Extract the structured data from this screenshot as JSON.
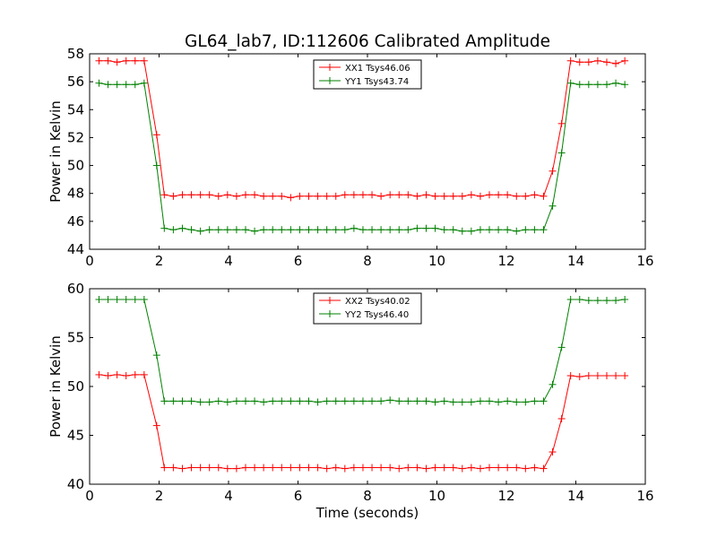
{
  "title": "GL64_lab7, ID:112606 Calibrated Amplitude",
  "chart_data": [
    {
      "type": "line",
      "xlabel": "",
      "ylabel": "Power in Kelvin",
      "xlim": [
        0,
        16
      ],
      "ylim": [
        44,
        58
      ],
      "xticks": [
        0,
        2,
        4,
        6,
        8,
        10,
        12,
        14,
        16
      ],
      "yticks": [
        44,
        46,
        48,
        50,
        52,
        54,
        56,
        58
      ],
      "grid": false,
      "legend": "top-center",
      "x": [
        0.27,
        0.53,
        0.79,
        1.05,
        1.31,
        1.57,
        1.93,
        2.15,
        2.41,
        2.67,
        2.93,
        3.19,
        3.45,
        3.71,
        3.97,
        4.23,
        4.49,
        4.75,
        5.01,
        5.27,
        5.53,
        5.79,
        6.05,
        6.31,
        6.57,
        6.83,
        7.09,
        7.35,
        7.61,
        7.87,
        8.13,
        8.39,
        8.65,
        8.91,
        9.17,
        9.43,
        9.69,
        9.95,
        10.21,
        10.47,
        10.73,
        10.99,
        11.25,
        11.51,
        11.77,
        12.03,
        12.29,
        12.55,
        12.81,
        13.07,
        13.33,
        13.59,
        13.85,
        14.11,
        14.37,
        14.63,
        14.89,
        15.15,
        15.41
      ],
      "series": [
        {
          "name": "XX1 Tsys46.06",
          "color": "#ff0000",
          "values": [
            57.5,
            57.5,
            57.4,
            57.5,
            57.5,
            57.5,
            52.2,
            47.9,
            47.8,
            47.9,
            47.9,
            47.9,
            47.9,
            47.8,
            47.9,
            47.8,
            47.9,
            47.9,
            47.8,
            47.8,
            47.8,
            47.7,
            47.8,
            47.8,
            47.8,
            47.8,
            47.8,
            47.9,
            47.9,
            47.9,
            47.9,
            47.8,
            47.9,
            47.9,
            47.9,
            47.8,
            47.9,
            47.8,
            47.8,
            47.8,
            47.8,
            47.9,
            47.8,
            47.9,
            47.9,
            47.9,
            47.8,
            47.8,
            47.9,
            47.8,
            49.6,
            53.0,
            57.5,
            57.4,
            57.4,
            57.5,
            57.4,
            57.3,
            57.5
          ]
        },
        {
          "name": "YY1 Tsys43.74",
          "color": "#008000",
          "values": [
            55.9,
            55.8,
            55.8,
            55.8,
            55.8,
            55.9,
            50.0,
            45.5,
            45.4,
            45.5,
            45.4,
            45.3,
            45.4,
            45.4,
            45.4,
            45.4,
            45.4,
            45.3,
            45.4,
            45.4,
            45.4,
            45.4,
            45.4,
            45.4,
            45.4,
            45.4,
            45.4,
            45.4,
            45.5,
            45.4,
            45.4,
            45.4,
            45.4,
            45.4,
            45.4,
            45.5,
            45.5,
            45.5,
            45.4,
            45.4,
            45.3,
            45.3,
            45.4,
            45.4,
            45.4,
            45.4,
            45.3,
            45.4,
            45.4,
            45.4,
            47.1,
            50.9,
            55.9,
            55.8,
            55.8,
            55.8,
            55.8,
            55.9,
            55.8
          ]
        }
      ]
    },
    {
      "type": "line",
      "xlabel": "Time (seconds)",
      "ylabel": "Power in Kelvin",
      "xlim": [
        0,
        16
      ],
      "ylim": [
        40,
        60
      ],
      "xticks": [
        0,
        2,
        4,
        6,
        8,
        10,
        12,
        14,
        16
      ],
      "yticks": [
        40,
        45,
        50,
        55,
        60
      ],
      "grid": false,
      "legend": "top-center",
      "x": [
        0.27,
        0.53,
        0.79,
        1.05,
        1.31,
        1.57,
        1.93,
        2.15,
        2.41,
        2.67,
        2.93,
        3.19,
        3.45,
        3.71,
        3.97,
        4.23,
        4.49,
        4.75,
        5.01,
        5.27,
        5.53,
        5.79,
        6.05,
        6.31,
        6.57,
        6.83,
        7.09,
        7.35,
        7.61,
        7.87,
        8.13,
        8.39,
        8.65,
        8.91,
        9.17,
        9.43,
        9.69,
        9.95,
        10.21,
        10.47,
        10.73,
        10.99,
        11.25,
        11.51,
        11.77,
        12.03,
        12.29,
        12.55,
        12.81,
        13.07,
        13.33,
        13.59,
        13.85,
        14.11,
        14.37,
        14.63,
        14.89,
        15.15,
        15.41
      ],
      "series": [
        {
          "name": "XX2 Tsys40.02",
          "color": "#ff0000",
          "values": [
            51.2,
            51.1,
            51.2,
            51.1,
            51.2,
            51.2,
            46.0,
            41.7,
            41.7,
            41.6,
            41.7,
            41.7,
            41.7,
            41.7,
            41.6,
            41.6,
            41.7,
            41.7,
            41.7,
            41.7,
            41.7,
            41.7,
            41.7,
            41.7,
            41.7,
            41.6,
            41.7,
            41.6,
            41.7,
            41.7,
            41.7,
            41.7,
            41.7,
            41.6,
            41.7,
            41.7,
            41.6,
            41.7,
            41.7,
            41.7,
            41.6,
            41.7,
            41.6,
            41.7,
            41.7,
            41.7,
            41.7,
            41.6,
            41.7,
            41.6,
            43.3,
            46.7,
            51.1,
            51.0,
            51.1,
            51.1,
            51.1,
            51.1,
            51.1
          ]
        },
        {
          "name": "YY2 Tsys46.40",
          "color": "#008000",
          "values": [
            58.9,
            58.9,
            58.9,
            58.9,
            58.9,
            58.9,
            53.2,
            48.5,
            48.5,
            48.5,
            48.5,
            48.4,
            48.4,
            48.5,
            48.4,
            48.5,
            48.5,
            48.5,
            48.4,
            48.5,
            48.5,
            48.5,
            48.5,
            48.5,
            48.4,
            48.5,
            48.5,
            48.5,
            48.5,
            48.5,
            48.5,
            48.5,
            48.6,
            48.5,
            48.5,
            48.5,
            48.5,
            48.4,
            48.5,
            48.4,
            48.4,
            48.4,
            48.5,
            48.5,
            48.4,
            48.5,
            48.4,
            48.4,
            48.5,
            48.5,
            50.2,
            54.0,
            58.9,
            58.9,
            58.8,
            58.8,
            58.8,
            58.8,
            58.9
          ]
        }
      ]
    }
  ]
}
